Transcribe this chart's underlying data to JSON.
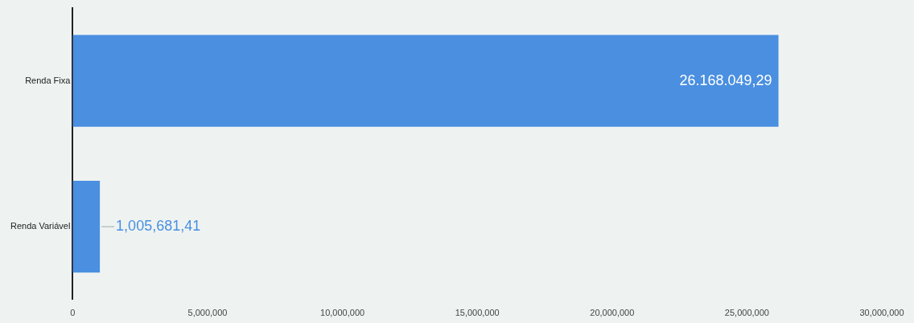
{
  "chart_data": {
    "type": "bar",
    "orientation": "horizontal",
    "categories": [
      "Renda Fixa",
      "Renda Variável"
    ],
    "values": [
      26168049.29,
      1005681.41
    ],
    "color": "#4a8fe0",
    "value_labels": [
      "26.168.049,29",
      "1,005,681,41"
    ],
    "xlim": [
      0,
      30000000
    ],
    "xticks": [
      {
        "value": 0,
        "label": "0"
      },
      {
        "value": 5000000,
        "label": "5,000,000"
      },
      {
        "value": 10000000,
        "label": "10,000,000"
      },
      {
        "value": 15000000,
        "label": "15,000,000"
      },
      {
        "value": 20000000,
        "label": "20,000,000"
      },
      {
        "value": 25000000,
        "label": "25,000,000"
      },
      {
        "value": 30000000,
        "label": "30,000,000"
      }
    ],
    "grid": false,
    "legend": false
  }
}
